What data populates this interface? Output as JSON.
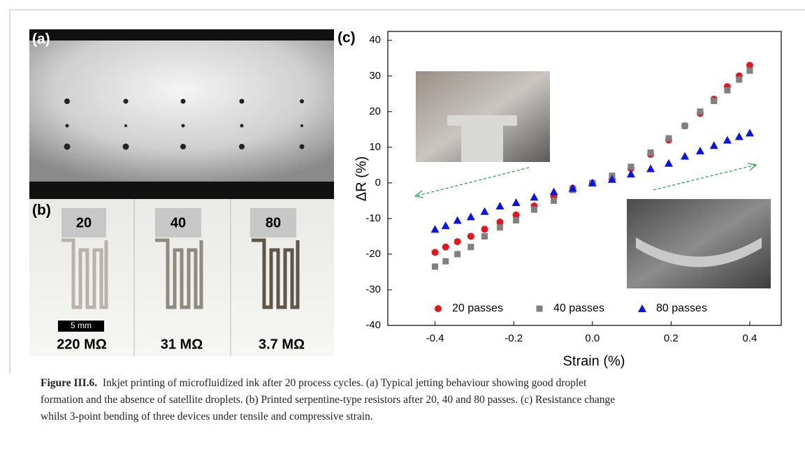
{
  "panels": {
    "a": "(a)",
    "b": "(b)",
    "c": "(c)"
  },
  "photo_b": {
    "labels": [
      "20",
      "40",
      "80"
    ],
    "scale_bar": "5 mm",
    "resistances": [
      "220 MΩ",
      "31 MΩ",
      "3.7 MΩ"
    ]
  },
  "chart_data": {
    "type": "scatter",
    "x_label": "Strain (%)",
    "y_label": "ΔR (%)",
    "x": [
      -0.4,
      -0.373,
      -0.343,
      -0.309,
      -0.274,
      -0.235,
      -0.194,
      -0.148,
      -0.098,
      -0.05,
      0,
      0.05,
      0.098,
      0.148,
      0.194,
      0.235,
      0.274,
      0.309,
      0.343,
      0.373,
      0.4
    ],
    "series": [
      {
        "name": "20 passes",
        "color": "#e8141c",
        "marker": "circle",
        "values": [
          -19.5,
          -18,
          -16.5,
          -15,
          -13,
          -11,
          -9,
          -6.5,
          -4,
          -1.5,
          0,
          1,
          4,
          8,
          12,
          16,
          19.5,
          23.5,
          27,
          30,
          33
        ]
      },
      {
        "name": "40 passes",
        "color": "#808080",
        "marker": "square",
        "values": [
          -23.5,
          -22,
          -20,
          -18,
          -15,
          -12.5,
          -10.5,
          -7.5,
          -5,
          -2,
          0,
          2,
          4.5,
          8.5,
          12.5,
          16,
          20,
          23,
          26,
          29,
          31.5
        ]
      },
      {
        "name": "80 passes",
        "color": "#0a14e6",
        "marker": "triangle",
        "values": [
          -13,
          -12,
          -10.5,
          -9.5,
          -8,
          -6.5,
          -5.5,
          -4,
          -2.5,
          -1.5,
          0,
          1,
          2.5,
          4,
          5.5,
          7.5,
          9,
          10.5,
          12,
          13,
          14
        ]
      }
    ],
    "xlim": [
      -0.52,
      0.48
    ],
    "xticks": [
      -0.4,
      -0.2,
      {
        "value": 0,
        "label": "0.0"
      },
      0.2,
      0.4
    ],
    "ylim": [
      -40,
      42.5
    ],
    "yticks": [
      -40,
      -30,
      -20,
      -10,
      0,
      10,
      20,
      30,
      40
    ],
    "legend": "bottom"
  },
  "caption": {
    "label": "Figure III.6.",
    "lines": [
      "Inkjet printing of microfluidized ink after 20 process cycles. (a) Typical jetting behaviour showing good droplet",
      "formation and the absence of satellite droplets. (b) Printed serpentine-type resistors after 20, 40 and 80 passes. (c) Resistance change",
      "whilst 3-point bending of three devices under tensile and compressive strain."
    ]
  }
}
